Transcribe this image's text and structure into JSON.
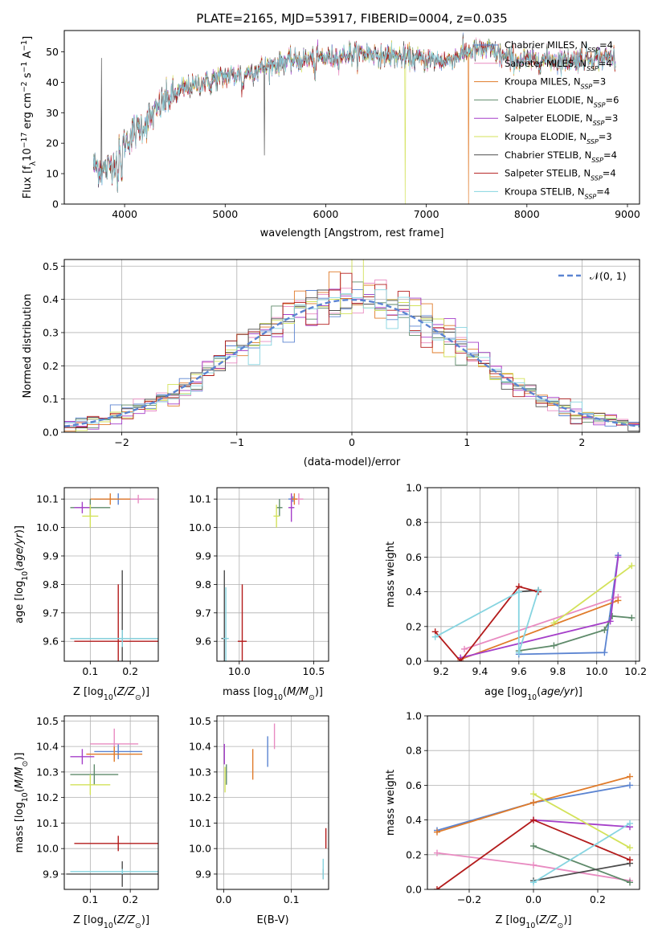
{
  "chart_data": [
    {
      "id": "spectrum",
      "type": "line",
      "title": "PLATE=2165, MJD=53917, FIBERID=0004, z=0.035",
      "xlabel": "wavelength [Angstrom, rest frame]",
      "ylabel": "Flux [f_λ10⁻¹⁷ erg cm⁻² s⁻¹ A⁻¹]",
      "xlim": [
        3400,
        9120
      ],
      "ylim": [
        0,
        57
      ],
      "xticks": [
        4000,
        5000,
        6000,
        7000,
        8000,
        9000
      ],
      "yticks": [
        0,
        10,
        20,
        30,
        40,
        50
      ],
      "grid": false,
      "legend_position": "top-right",
      "continuum": {
        "x": [
          3690,
          3800,
          3900,
          4000,
          4100,
          4200,
          4300,
          4400,
          4600,
          4800,
          5000,
          5200,
          5400,
          5600,
          5800,
          6000,
          6200,
          6400,
          6600,
          6800,
          7000,
          7200,
          7400,
          7600,
          7800,
          8000,
          8200,
          8400,
          8600,
          8800
        ],
        "y": [
          13,
          11,
          14,
          20,
          24,
          26,
          30,
          34,
          38,
          40,
          42,
          43,
          45,
          47,
          47.5,
          48,
          49,
          49.5,
          49,
          48,
          47.5,
          47,
          50,
          51,
          48,
          47,
          47.5,
          47,
          48,
          48
        ]
      },
      "glitches": [
        {
          "x": 6790,
          "y": 0,
          "series": "Kroupa ELODIE, N_SSP=3"
        },
        {
          "x": 7420,
          "y": 0,
          "series": "Kroupa MILES, N_SSP=3"
        },
        {
          "x": 5390,
          "y": 16,
          "series": "Chabrier STELIB, N_SSP=4"
        },
        {
          "x": 3770,
          "y": 48,
          "series": "Chabrier STELIB, N_SSP=4"
        }
      ],
      "series": [
        {
          "name": "Chabrier MILES, N_SSP=4",
          "label_main": "Chabrier MILES, N",
          "label_sub": "SSP",
          "label_tail": "=4",
          "color": "#5b84d1"
        },
        {
          "name": "Salpeter MILES, N_SSP=4",
          "label_main": "Salpeter MILES, N",
          "label_sub": "SSP",
          "label_tail": "=4",
          "color": "#e88bc1"
        },
        {
          "name": "Kroupa MILES, N_SSP=3",
          "label_main": "Kroupa MILES, N",
          "label_sub": "SSP",
          "label_tail": "=3",
          "color": "#e07b2a"
        },
        {
          "name": "Chabrier ELODIE, N_SSP=6",
          "label_main": "Chabrier ELODIE, N",
          "label_sub": "SSP",
          "label_tail": "=6",
          "color": "#5e8a6a"
        },
        {
          "name": "Salpeter ELODIE, N_SSP=3",
          "label_main": "Salpeter ELODIE, N",
          "label_sub": "SSP",
          "label_tail": "=3",
          "color": "#a53fc9"
        },
        {
          "name": "Kroupa ELODIE, N_SSP=3",
          "label_main": "Kroupa ELODIE, N",
          "label_sub": "SSP",
          "label_tail": "=3",
          "color": "#d3e25a"
        },
        {
          "name": "Chabrier STELIB, N_SSP=4",
          "label_main": "Chabrier STELIB, N",
          "label_sub": "SSP",
          "label_tail": "=4",
          "color": "#4d4d4d"
        },
        {
          "name": "Salpeter STELIB, N_SSP=4",
          "label_main": "Salpeter STELIB, N",
          "label_sub": "SSP",
          "label_tail": "=4",
          "color": "#b31b1b"
        },
        {
          "name": "Kroupa STELIB, N_SSP=4",
          "label_main": "Kroupa STELIB, N",
          "label_sub": "SSP",
          "label_tail": "=4",
          "color": "#86d4e0"
        }
      ]
    },
    {
      "id": "residuals",
      "type": "line",
      "xlabel": "(data-model)/error",
      "ylabel": "Normed distribution",
      "xlim": [
        -2.5,
        2.5
      ],
      "ylim": [
        0,
        0.52
      ],
      "xticks": [
        -2,
        -1,
        0,
        1,
        2
      ],
      "yticks": [
        0.0,
        0.1,
        0.2,
        0.3,
        0.4,
        0.5
      ],
      "grid": true,
      "legend_position": "top-right",
      "reference_curve": {
        "name": "𝒩(0, 1)",
        "label": "𝒩(0, 1)",
        "mu": 0,
        "sigma": 1,
        "style": "dashed",
        "color": "#5b84d1"
      },
      "histogram_bin_width": 0.1,
      "histogram_note_series_colors": [
        "#5b84d1",
        "#e88bc1",
        "#e07b2a",
        "#5e8a6a",
        "#a53fc9",
        "#d3e25a",
        "#4d4d4d",
        "#b31b1b",
        "#86d4e0"
      ]
    },
    {
      "id": "age-vs-Z",
      "type": "scatter",
      "xlabel": "Z [log10(Z/Z⊙)]",
      "ylabel": "age [log10(age/yr)]",
      "xlim": [
        0.035,
        0.27
      ],
      "ylim": [
        9.53,
        10.14
      ],
      "xticks": [
        0.1,
        0.2
      ],
      "yticks": [
        9.6,
        9.7,
        9.8,
        9.9,
        10.0,
        10.1
      ],
      "grid": true,
      "points": [
        {
          "x": 0.17,
          "y": 10.1,
          "xerr": 0.06,
          "yerr": 0.02,
          "color": "#5b84d1"
        },
        {
          "x": 0.22,
          "y": 10.1,
          "xerr": 0.04,
          "yerr": 0.015,
          "color": "#e88bc1"
        },
        {
          "x": 0.15,
          "y": 10.1,
          "xerr": 0.05,
          "yerr": 0.02,
          "color": "#e07b2a"
        },
        {
          "x": 0.1,
          "y": 10.07,
          "xerr": 0.05,
          "yerr": 0.03,
          "color": "#5e8a6a"
        },
        {
          "x": 0.08,
          "y": 10.07,
          "xerr": 0.02,
          "yerr": 0.02,
          "color": "#a53fc9"
        },
        {
          "x": 0.1,
          "y": 10.04,
          "xerr": 0.02,
          "yerr": 0.04,
          "color": "#d3e25a"
        },
        {
          "x": 0.18,
          "y": 9.61,
          "xerr": 0.13,
          "yerr": 0.24,
          "color": "#4d4d4d"
        },
        {
          "x": 0.17,
          "y": 9.6,
          "xerr": 0.11,
          "yerr": 0.2,
          "color": "#b31b1b"
        },
        {
          "x": 0.18,
          "y": 9.61,
          "xerr": 0.13,
          "yerr": 0.03,
          "color": "#86d4e0"
        }
      ]
    },
    {
      "id": "age-vs-mass",
      "type": "scatter",
      "xlabel": "mass [log10(M/M⊙)]",
      "ylabel": "",
      "xlim": [
        9.85,
        10.6
      ],
      "ylim": [
        9.53,
        10.14
      ],
      "xticks": [
        10.0,
        10.5
      ],
      "yticks": [
        9.6,
        9.7,
        9.8,
        9.9,
        10.0,
        10.1
      ],
      "grid": true,
      "points": [
        {
          "x": 10.36,
          "y": 10.1,
          "xerr": 0.03,
          "yerr": 0.01,
          "color": "#5b84d1"
        },
        {
          "x": 10.4,
          "y": 10.1,
          "xerr": 0.03,
          "yerr": 0.02,
          "color": "#e88bc1"
        },
        {
          "x": 10.37,
          "y": 10.1,
          "xerr": 0.02,
          "yerr": 0.02,
          "color": "#e07b2a"
        },
        {
          "x": 10.27,
          "y": 10.07,
          "xerr": 0.02,
          "yerr": 0.03,
          "color": "#5e8a6a"
        },
        {
          "x": 10.35,
          "y": 10.07,
          "xerr": 0.02,
          "yerr": 0.05,
          "color": "#a53fc9"
        },
        {
          "x": 10.25,
          "y": 10.04,
          "xerr": 0.02,
          "yerr": 0.04,
          "color": "#d3e25a"
        },
        {
          "x": 9.9,
          "y": 9.61,
          "xerr": 0.02,
          "yerr": 0.24,
          "color": "#4d4d4d"
        },
        {
          "x": 10.02,
          "y": 9.6,
          "xerr": 0.03,
          "yerr": 0.2,
          "color": "#b31b1b"
        },
        {
          "x": 9.91,
          "y": 9.61,
          "xerr": 0.02,
          "yerr": 0.18,
          "color": "#86d4e0"
        }
      ]
    },
    {
      "id": "mass-weight-vs-age",
      "type": "line",
      "xlabel": "age [log10(age/yr)]",
      "ylabel": "mass weight",
      "xlim": [
        9.13,
        10.22
      ],
      "ylim": [
        0,
        1.0
      ],
      "xticks": [
        9.2,
        9.4,
        9.6,
        9.8,
        10.0,
        10.2
      ],
      "yticks": [
        0.0,
        0.2,
        0.4,
        0.6,
        0.8,
        1.0
      ],
      "grid": true,
      "series": [
        {
          "name": "Chabrier MILES",
          "color": "#5b84d1",
          "x": [
            9.6,
            10.04,
            10.11
          ],
          "y": [
            0.04,
            0.05,
            0.61
          ]
        },
        {
          "name": "Salpeter MILES",
          "color": "#e88bc1",
          "x": [
            9.32,
            10.11
          ],
          "y": [
            0.07,
            0.37
          ]
        },
        {
          "name": "Kroupa MILES",
          "color": "#e07b2a",
          "x": [
            9.3,
            10.11
          ],
          "y": [
            0.01,
            0.35
          ]
        },
        {
          "name": "Chabrier ELODIE",
          "color": "#5e8a6a",
          "x": [
            9.6,
            9.78,
            10.04,
            10.08,
            10.18
          ],
          "y": [
            0.06,
            0.09,
            0.18,
            0.26,
            0.25
          ]
        },
        {
          "name": "Salpeter ELODIE",
          "color": "#a53fc9",
          "x": [
            9.3,
            10.07,
            10.11
          ],
          "y": [
            0.02,
            0.23,
            0.6
          ]
        },
        {
          "name": "Kroupa ELODIE",
          "color": "#d3e25a",
          "x": [
            9.78,
            10.18
          ],
          "y": [
            0.22,
            0.55
          ]
        },
        {
          "name": "Chabrier STELIB",
          "color": "#4d4d4d",
          "x": [
            9.6,
            9.7
          ],
          "y": [
            0.4,
            0.41
          ]
        },
        {
          "name": "Salpeter STELIB",
          "color": "#b31b1b",
          "x": [
            9.17,
            9.3,
            9.6,
            9.7
          ],
          "y": [
            0.17,
            0.0,
            0.43,
            0.4
          ]
        },
        {
          "name": "Kroupa STELIB",
          "color": "#86d4e0",
          "x": [
            9.17,
            9.6,
            9.6,
            9.7
          ],
          "y": [
            0.14,
            0.4,
            0.05,
            0.41
          ]
        }
      ]
    },
    {
      "id": "mass-vs-Z",
      "type": "scatter",
      "xlabel": "Z [log10(Z/Z⊙)]",
      "ylabel": "mass [log10(M/M⊙)]",
      "xlim": [
        0.035,
        0.27
      ],
      "ylim": [
        9.84,
        10.52
      ],
      "xticks": [
        0.1,
        0.2
      ],
      "yticks": [
        9.9,
        10.0,
        10.1,
        10.2,
        10.3,
        10.4,
        10.5
      ],
      "grid": true,
      "points": [
        {
          "x": 0.17,
          "y": 10.38,
          "xerr": 0.06,
          "yerr": 0.03,
          "color": "#5b84d1"
        },
        {
          "x": 0.16,
          "y": 10.41,
          "xerr": 0.06,
          "yerr": 0.06,
          "color": "#e88bc1"
        },
        {
          "x": 0.16,
          "y": 10.37,
          "xerr": 0.07,
          "yerr": 0.03,
          "color": "#e07b2a"
        },
        {
          "x": 0.11,
          "y": 10.29,
          "xerr": 0.06,
          "yerr": 0.04,
          "color": "#5e8a6a"
        },
        {
          "x": 0.08,
          "y": 10.36,
          "xerr": 0.03,
          "yerr": 0.03,
          "color": "#a53fc9"
        },
        {
          "x": 0.1,
          "y": 10.25,
          "xerr": 0.05,
          "yerr": 0.04,
          "color": "#d3e25a"
        },
        {
          "x": 0.18,
          "y": 9.9,
          "xerr": 0.14,
          "yerr": 0.05,
          "color": "#4d4d4d"
        },
        {
          "x": 0.17,
          "y": 10.02,
          "xerr": 0.11,
          "yerr": 0.03,
          "color": "#b31b1b"
        },
        {
          "x": 0.18,
          "y": 9.91,
          "xerr": 0.13,
          "yerr": 0.01,
          "color": "#86d4e0"
        }
      ]
    },
    {
      "id": "mass-vs-EBV",
      "type": "scatter",
      "xlabel": "E(B-V)",
      "ylabel": "",
      "xlim": [
        -0.01,
        0.155
      ],
      "ylim": [
        9.84,
        10.52
      ],
      "xticks": [
        0.0,
        0.1
      ],
      "yticks": [
        9.9,
        10.0,
        10.1,
        10.2,
        10.3,
        10.4,
        10.5
      ],
      "grid": true,
      "points": [
        {
          "x": 0.065,
          "y": 10.38,
          "xerr": 0,
          "yerr": 0.06,
          "color": "#5b84d1"
        },
        {
          "x": 0.075,
          "y": 10.44,
          "xerr": 0,
          "yerr": 0.05,
          "color": "#e88bc1"
        },
        {
          "x": 0.043,
          "y": 10.33,
          "xerr": 0,
          "yerr": 0.06,
          "color": "#e07b2a"
        },
        {
          "x": 0.004,
          "y": 10.29,
          "xerr": 0,
          "yerr": 0.04,
          "color": "#5e8a6a"
        },
        {
          "x": 0.001,
          "y": 10.37,
          "xerr": 0,
          "yerr": 0.04,
          "color": "#a53fc9"
        },
        {
          "x": 0.002,
          "y": 10.27,
          "xerr": 0,
          "yerr": 0.05,
          "color": "#d3e25a"
        },
        {
          "x": 0.147,
          "y": 9.9,
          "xerr": 0,
          "yerr": 0.02,
          "color": "#4d4d4d"
        },
        {
          "x": 0.151,
          "y": 10.04,
          "xerr": 0,
          "yerr": 0.04,
          "color": "#b31b1b"
        },
        {
          "x": 0.147,
          "y": 9.92,
          "xerr": 0,
          "yerr": 0.04,
          "color": "#86d4e0"
        }
      ]
    },
    {
      "id": "mass-weight-vs-Z",
      "type": "line",
      "xlabel": "Z [log10(Z/Z⊙)]",
      "ylabel": "mass weight",
      "xlim": [
        -0.33,
        0.33
      ],
      "ylim": [
        0,
        1.0
      ],
      "xticks": [
        -0.2,
        0.0,
        0.2
      ],
      "yticks": [
        0.0,
        0.2,
        0.4,
        0.6,
        0.8,
        1.0
      ],
      "grid": true,
      "series": [
        {
          "name": "Chabrier MILES",
          "color": "#5b84d1",
          "x": [
            -0.3,
            0.0,
            0.3
          ],
          "y": [
            0.34,
            0.5,
            0.6
          ]
        },
        {
          "name": "Salpeter MILES",
          "color": "#e88bc1",
          "x": [
            -0.3,
            0.0,
            0.3
          ],
          "y": [
            0.21,
            0.14,
            0.05
          ]
        },
        {
          "name": "Kroupa MILES",
          "color": "#e07b2a",
          "x": [
            -0.3,
            0.0,
            0.3
          ],
          "y": [
            0.33,
            0.5,
            0.65
          ]
        },
        {
          "name": "Chabrier ELODIE",
          "color": "#5e8a6a",
          "x": [
            0.0,
            0.3
          ],
          "y": [
            0.25,
            0.04
          ]
        },
        {
          "name": "Salpeter ELODIE",
          "color": "#a53fc9",
          "x": [
            0.0,
            0.3
          ],
          "y": [
            0.4,
            0.36
          ]
        },
        {
          "name": "Kroupa ELODIE",
          "color": "#d3e25a",
          "x": [
            0.0,
            0.3
          ],
          "y": [
            0.55,
            0.24
          ]
        },
        {
          "name": "Chabrier STELIB",
          "color": "#4d4d4d",
          "x": [
            0.0,
            0.3
          ],
          "y": [
            0.05,
            0.15
          ]
        },
        {
          "name": "Salpeter STELIB",
          "color": "#b31b1b",
          "x": [
            -0.3,
            0.0,
            0.3
          ],
          "y": [
            0.0,
            0.4,
            0.17
          ]
        },
        {
          "name": "Kroupa STELIB",
          "color": "#86d4e0",
          "x": [
            0.0,
            0.3
          ],
          "y": [
            0.04,
            0.38
          ]
        }
      ]
    }
  ]
}
